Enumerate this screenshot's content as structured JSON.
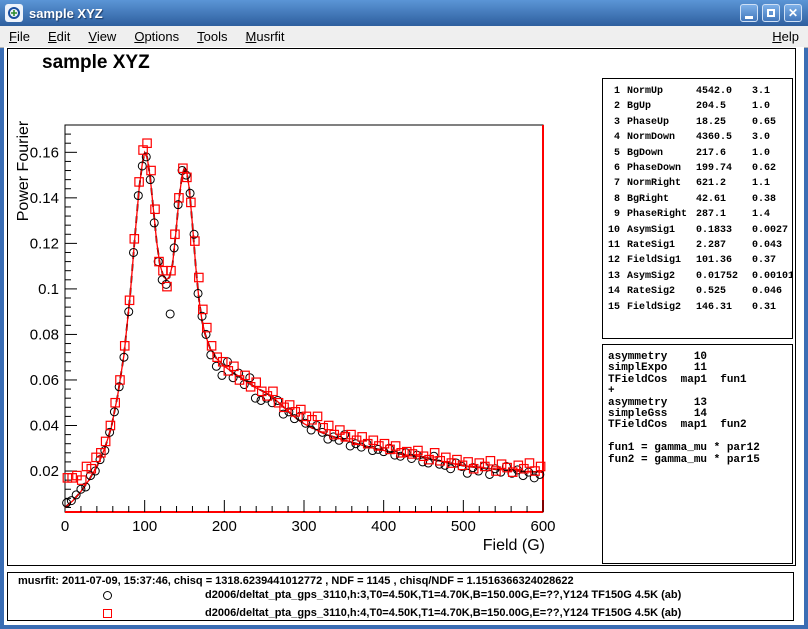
{
  "window": {
    "title": "sample XYZ",
    "close_glyph": "✕"
  },
  "menu": {
    "items": [
      {
        "label": "File"
      },
      {
        "label": "Edit"
      },
      {
        "label": "View"
      },
      {
        "label": "Options"
      },
      {
        "label": "Tools"
      },
      {
        "label": "Musrfit"
      }
    ],
    "help": {
      "label": "Help"
    }
  },
  "chart_data": {
    "type": "scatter",
    "title": "sample XYZ",
    "xlabel": "Field (G)",
    "ylabel": "Power Fourier",
    "xlim": [
      0,
      600
    ],
    "ylim": [
      0.002,
      0.172
    ],
    "grid": false,
    "legend_position": "bottom-info-pad",
    "xticks": {
      "major": [
        0,
        100,
        200,
        300,
        400,
        500,
        600
      ],
      "labels": [
        "0",
        "100",
        "200",
        "300",
        "400",
        "500",
        "600"
      ],
      "minor_step": 20
    },
    "yticks": {
      "major": [
        0.02,
        0.04,
        0.06,
        0.08,
        0.1,
        0.12,
        0.14,
        0.16
      ],
      "labels": [
        "0.02",
        "0.04",
        "0.06",
        "0.08",
        "0.1",
        "0.12",
        "0.14",
        "0.16"
      ],
      "minor_step": 0.004
    },
    "frame": {
      "top_left_color": "#000000",
      "bottom_right_color": "#ff0000"
    },
    "fit_line": {
      "color": "#ff0000",
      "underlay_color": "#000000",
      "underlay_dashed": true,
      "points": [
        [
          0,
          0.004
        ],
        [
          10,
          0.007
        ],
        [
          20,
          0.011
        ],
        [
          30,
          0.016
        ],
        [
          40,
          0.022
        ],
        [
          50,
          0.03
        ],
        [
          58,
          0.039
        ],
        [
          66,
          0.053
        ],
        [
          74,
          0.071
        ],
        [
          82,
          0.098
        ],
        [
          88,
          0.124
        ],
        [
          93,
          0.144
        ],
        [
          97,
          0.155
        ],
        [
          100,
          0.16
        ],
        [
          103,
          0.158
        ],
        [
          107,
          0.149
        ],
        [
          111,
          0.135
        ],
        [
          115,
          0.121
        ],
        [
          119,
          0.111
        ],
        [
          123,
          0.106
        ],
        [
          127,
          0.104
        ],
        [
          131,
          0.105
        ],
        [
          135,
          0.111
        ],
        [
          139,
          0.124
        ],
        [
          143,
          0.139
        ],
        [
          147,
          0.15
        ],
        [
          150,
          0.153
        ],
        [
          153,
          0.151
        ],
        [
          156,
          0.144
        ],
        [
          160,
          0.128
        ],
        [
          164,
          0.11
        ],
        [
          168,
          0.096
        ],
        [
          172,
          0.086
        ],
        [
          176,
          0.08
        ],
        [
          182,
          0.074
        ],
        [
          190,
          0.0695
        ],
        [
          200,
          0.066
        ],
        [
          210,
          0.0635
        ],
        [
          220,
          0.0612
        ],
        [
          230,
          0.0588
        ],
        [
          240,
          0.0565
        ],
        [
          250,
          0.0548
        ],
        [
          260,
          0.0528
        ],
        [
          270,
          0.0495
        ],
        [
          280,
          0.0462
        ],
        [
          290,
          0.0432
        ],
        [
          300,
          0.0408
        ],
        [
          310,
          0.039
        ],
        [
          320,
          0.0373
        ],
        [
          330,
          0.0358
        ],
        [
          340,
          0.0347
        ],
        [
          350,
          0.0337
        ],
        [
          360,
          0.0326
        ],
        [
          370,
          0.0316
        ],
        [
          380,
          0.0307
        ],
        [
          390,
          0.0298
        ],
        [
          400,
          0.029
        ],
        [
          410,
          0.0282
        ],
        [
          420,
          0.0275
        ],
        [
          430,
          0.027
        ],
        [
          440,
          0.0266
        ],
        [
          450,
          0.0262
        ],
        [
          460,
          0.0253
        ],
        [
          470,
          0.0245
        ],
        [
          480,
          0.0237
        ],
        [
          490,
          0.023
        ],
        [
          500,
          0.0224
        ],
        [
          510,
          0.0219
        ],
        [
          520,
          0.0215
        ],
        [
          530,
          0.0211
        ],
        [
          540,
          0.0208
        ],
        [
          550,
          0.0205
        ],
        [
          560,
          0.0202
        ],
        [
          570,
          0.02
        ],
        [
          580,
          0.0198
        ],
        [
          590,
          0.0196
        ],
        [
          600,
          0.0195
        ]
      ]
    },
    "series": [
      {
        "label": "d2006/deltat_pta_gps_3110,h:3,T0=4.50K,T1=4.70K,B=150.00G,E=??,Y124 TF150G 4.5K (ab)",
        "marker": "circle",
        "color": "#000000",
        "points": [
          [
            2,
            0.006
          ],
          [
            8,
            0.007
          ],
          [
            14,
            0.0095
          ],
          [
            20,
            0.012
          ],
          [
            26,
            0.013
          ],
          [
            32,
            0.018
          ],
          [
            38,
            0.02
          ],
          [
            44,
            0.025
          ],
          [
            50,
            0.029
          ],
          [
            56,
            0.037
          ],
          [
            62,
            0.046
          ],
          [
            68,
            0.057
          ],
          [
            74,
            0.07
          ],
          [
            80,
            0.09
          ],
          [
            86,
            0.116
          ],
          [
            92,
            0.141
          ],
          [
            97,
            0.154
          ],
          [
            102,
            0.158
          ],
          [
            107,
            0.148
          ],
          [
            112,
            0.129
          ],
          [
            117,
            0.112
          ],
          [
            122,
            0.104
          ],
          [
            127,
            0.102
          ],
          [
            132,
            0.089
          ],
          [
            137,
            0.118
          ],
          [
            142,
            0.137
          ],
          [
            147,
            0.152
          ],
          [
            152,
            0.15
          ],
          [
            157,
            0.142
          ],
          [
            162,
            0.124
          ],
          [
            167,
            0.098
          ],
          [
            172,
            0.088
          ],
          [
            177,
            0.08
          ],
          [
            183,
            0.071
          ],
          [
            190,
            0.066
          ],
          [
            197,
            0.062
          ],
          [
            204,
            0.068
          ],
          [
            211,
            0.061
          ],
          [
            218,
            0.063
          ],
          [
            225,
            0.058
          ],
          [
            232,
            0.061
          ],
          [
            239,
            0.052
          ],
          [
            246,
            0.051
          ],
          [
            253,
            0.052
          ],
          [
            260,
            0.05
          ],
          [
            267,
            0.051
          ],
          [
            274,
            0.045
          ],
          [
            281,
            0.046
          ],
          [
            288,
            0.043
          ],
          [
            295,
            0.044
          ],
          [
            302,
            0.041
          ],
          [
            309,
            0.038
          ],
          [
            316,
            0.04
          ],
          [
            323,
            0.037
          ],
          [
            330,
            0.034
          ],
          [
            337,
            0.035
          ],
          [
            344,
            0.0335
          ],
          [
            351,
            0.036
          ],
          [
            358,
            0.031
          ],
          [
            365,
            0.032
          ],
          [
            372,
            0.0305
          ],
          [
            379,
            0.032
          ],
          [
            386,
            0.029
          ],
          [
            393,
            0.0295
          ],
          [
            400,
            0.0285
          ],
          [
            407,
            0.03
          ],
          [
            414,
            0.027
          ],
          [
            421,
            0.0265
          ],
          [
            428,
            0.028
          ],
          [
            435,
            0.0255
          ],
          [
            442,
            0.027
          ],
          [
            449,
            0.024
          ],
          [
            456,
            0.0235
          ],
          [
            463,
            0.0265
          ],
          [
            470,
            0.023
          ],
          [
            477,
            0.0225
          ],
          [
            484,
            0.021
          ],
          [
            491,
            0.0235
          ],
          [
            498,
            0.022
          ],
          [
            505,
            0.019
          ],
          [
            512,
            0.0215
          ],
          [
            519,
            0.02
          ],
          [
            526,
            0.022
          ],
          [
            533,
            0.0185
          ],
          [
            540,
            0.021
          ],
          [
            547,
            0.0195
          ],
          [
            554,
            0.022
          ],
          [
            561,
            0.019
          ],
          [
            568,
            0.0205
          ],
          [
            575,
            0.018
          ],
          [
            582,
            0.0195
          ],
          [
            589,
            0.017
          ],
          [
            596,
            0.0185
          ]
        ]
      },
      {
        "label": "d2006/deltat_pta_gps_3110,h:4,T0=4.50K,T1=4.70K,B=150.00G,E=??,Y124 TF150G 4.5K (ab)",
        "marker": "square",
        "color": "#ff0000",
        "points": [
          [
            3,
            0.017
          ],
          [
            9,
            0.017
          ],
          [
            15,
            0.018
          ],
          [
            21,
            0.016
          ],
          [
            27,
            0.022
          ],
          [
            33,
            0.021
          ],
          [
            39,
            0.026
          ],
          [
            45,
            0.028
          ],
          [
            51,
            0.033
          ],
          [
            57,
            0.04
          ],
          [
            63,
            0.05
          ],
          [
            69,
            0.06
          ],
          [
            75,
            0.075
          ],
          [
            81,
            0.095
          ],
          [
            87,
            0.122
          ],
          [
            93,
            0.147
          ],
          [
            98,
            0.161
          ],
          [
            103,
            0.164
          ],
          [
            108,
            0.152
          ],
          [
            113,
            0.135
          ],
          [
            118,
            0.112
          ],
          [
            123,
            0.108
          ],
          [
            128,
            0.101
          ],
          [
            133,
            0.108
          ],
          [
            138,
            0.124
          ],
          [
            143,
            0.14
          ],
          [
            148,
            0.153
          ],
          [
            153,
            0.149
          ],
          [
            158,
            0.138
          ],
          [
            163,
            0.121
          ],
          [
            168,
            0.105
          ],
          [
            173,
            0.091
          ],
          [
            178,
            0.083
          ],
          [
            184,
            0.075
          ],
          [
            191,
            0.07
          ],
          [
            198,
            0.068
          ],
          [
            205,
            0.064
          ],
          [
            212,
            0.066
          ],
          [
            219,
            0.06
          ],
          [
            226,
            0.062
          ],
          [
            233,
            0.057
          ],
          [
            240,
            0.059
          ],
          [
            247,
            0.055
          ],
          [
            254,
            0.053
          ],
          [
            261,
            0.055
          ],
          [
            268,
            0.05
          ],
          [
            275,
            0.048
          ],
          [
            282,
            0.049
          ],
          [
            289,
            0.046
          ],
          [
            296,
            0.047
          ],
          [
            303,
            0.044
          ],
          [
            310,
            0.0425
          ],
          [
            317,
            0.044
          ],
          [
            324,
            0.039
          ],
          [
            331,
            0.04
          ],
          [
            338,
            0.036
          ],
          [
            345,
            0.038
          ],
          [
            352,
            0.035
          ],
          [
            359,
            0.036
          ],
          [
            366,
            0.0335
          ],
          [
            373,
            0.035
          ],
          [
            380,
            0.032
          ],
          [
            387,
            0.0335
          ],
          [
            394,
            0.031
          ],
          [
            401,
            0.032
          ],
          [
            408,
            0.0295
          ],
          [
            415,
            0.031
          ],
          [
            422,
            0.028
          ],
          [
            429,
            0.0285
          ],
          [
            436,
            0.0275
          ],
          [
            443,
            0.029
          ],
          [
            450,
            0.0265
          ],
          [
            457,
            0.025
          ],
          [
            464,
            0.028
          ],
          [
            471,
            0.0245
          ],
          [
            478,
            0.026
          ],
          [
            485,
            0.0235
          ],
          [
            492,
            0.025
          ],
          [
            499,
            0.0225
          ],
          [
            506,
            0.024
          ],
          [
            513,
            0.021
          ],
          [
            520,
            0.0235
          ],
          [
            527,
            0.022
          ],
          [
            534,
            0.0245
          ],
          [
            541,
            0.02
          ],
          [
            548,
            0.023
          ],
          [
            555,
            0.0215
          ],
          [
            562,
            0.0195
          ],
          [
            569,
            0.0225
          ],
          [
            576,
            0.021
          ],
          [
            583,
            0.0235
          ],
          [
            590,
            0.02
          ],
          [
            597,
            0.022
          ]
        ]
      }
    ]
  },
  "parameters": {
    "rows": [
      {
        "num": "1",
        "name": "NormUp",
        "value": "4542.0",
        "error": "3.1"
      },
      {
        "num": "2",
        "name": "BgUp",
        "value": "204.5",
        "error": "1.0"
      },
      {
        "num": "3",
        "name": "PhaseUp",
        "value": "18.25",
        "error": "0.65"
      },
      {
        "num": "4",
        "name": "NormDown",
        "value": "4360.5",
        "error": "3.0"
      },
      {
        "num": "5",
        "name": "BgDown",
        "value": "217.6",
        "error": "1.0"
      },
      {
        "num": "6",
        "name": "PhaseDown",
        "value": "199.74",
        "error": "0.62"
      },
      {
        "num": "7",
        "name": "NormRight",
        "value": "621.2",
        "error": "1.1"
      },
      {
        "num": "8",
        "name": "BgRight",
        "value": "42.61",
        "error": "0.38"
      },
      {
        "num": "9",
        "name": "PhaseRight",
        "value": "287.1",
        "error": "1.4"
      },
      {
        "num": "10",
        "name": "AsymSig1",
        "value": "0.1833",
        "error": "0.0027"
      },
      {
        "num": "11",
        "name": "RateSig1",
        "value": "2.287",
        "error": "0.043"
      },
      {
        "num": "12",
        "name": "FieldSig1",
        "value": "101.36",
        "error": "0.37"
      },
      {
        "num": "13",
        "name": "AsymSig2",
        "value": "0.01752",
        "error": "0.00101"
      },
      {
        "num": "14",
        "name": "RateSig2",
        "value": "0.525",
        "error": "0.046"
      },
      {
        "num": "15",
        "name": "FieldSig2",
        "value": "146.31",
        "error": "0.31"
      }
    ]
  },
  "theory": {
    "lines": [
      "asymmetry    10",
      "simplExpo    11",
      "TFieldCos  map1  fun1",
      "+",
      "asymmetry    13",
      "simpleGss    14",
      "TFieldCos  map1  fun2",
      "",
      "fun1 = gamma_mu * par12",
      "fun2 = gamma_mu * par15"
    ]
  },
  "info": {
    "fit_info": "musrfit: 2011-07-09, 15:37:46, chisq = 1318.6239441012772 , NDF = 1145 , chisq/NDF = 1.1516366324028622"
  }
}
